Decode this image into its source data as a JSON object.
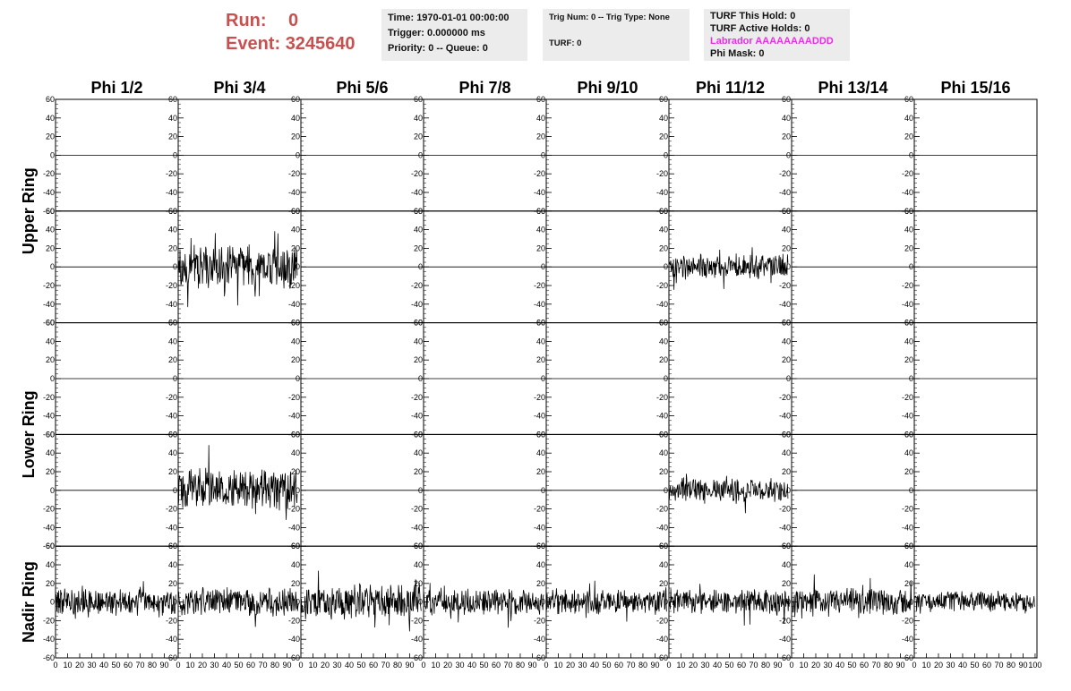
{
  "header": {
    "run_label": "Run:",
    "run_value": "0",
    "event_label": "Event:",
    "event_value": "3245640",
    "time": "Time: 1970-01-01 00:00:00",
    "trigger": "Trigger: 0.000000 ms",
    "priority": "Priority: 0 -- Queue: 0",
    "trig_num": "Trig Num: 0 -- Trig Type: None",
    "turf": "TURF: 0",
    "turf_this_hold": "TURF This Hold: 0",
    "turf_active_holds": "TURF Active Holds: 0",
    "labrador": "Labrador AAAAAAAADDD",
    "phi_mask": "Phi Mask: 0",
    "labrador_color": "#e52fe5",
    "run_color": "#c8504f"
  },
  "chart_data": {
    "type": "line",
    "columns": [
      "Phi 1/2",
      "Phi 3/4",
      "Phi 5/6",
      "Phi 7/8",
      "Phi 9/10",
      "Phi 11/12",
      "Phi 13/14",
      "Phi 15/16"
    ],
    "rows": [
      "Upper Ring",
      "Lower Ring",
      "Nadir Ring"
    ],
    "ylim": [
      -60,
      60
    ],
    "xlim": [
      0,
      100
    ],
    "y_ticks": [
      "60",
      "40",
      "20",
      "0",
      "-20",
      "-40",
      "-60"
    ],
    "x_ticks": [
      "0",
      "10",
      "20",
      "30",
      "40",
      "50",
      "60",
      "70",
      "80",
      "90",
      "100"
    ],
    "panels": [
      {
        "row": 0,
        "col": 0,
        "amplitude": 0
      },
      {
        "row": 0,
        "col": 1,
        "amplitude": 0
      },
      {
        "row": 0,
        "col": 2,
        "amplitude": 0
      },
      {
        "row": 0,
        "col": 3,
        "amplitude": 0
      },
      {
        "row": 0,
        "col": 4,
        "amplitude": 0
      },
      {
        "row": 0,
        "col": 5,
        "amplitude": 0
      },
      {
        "row": 0,
        "col": 6,
        "amplitude": 0
      },
      {
        "row": 0,
        "col": 7,
        "amplitude": 0
      },
      {
        "row": 1,
        "col": 0,
        "amplitude": 0
      },
      {
        "row": 1,
        "col": 1,
        "amplitude": 22
      },
      {
        "row": 1,
        "col": 2,
        "amplitude": 0
      },
      {
        "row": 1,
        "col": 3,
        "amplitude": 0
      },
      {
        "row": 1,
        "col": 4,
        "amplitude": 0
      },
      {
        "row": 1,
        "col": 5,
        "amplitude": 13
      },
      {
        "row": 1,
        "col": 6,
        "amplitude": 0
      },
      {
        "row": 1,
        "col": 7,
        "amplitude": 0
      },
      {
        "row": 2,
        "col": 0,
        "amplitude": 0
      },
      {
        "row": 2,
        "col": 1,
        "amplitude": 0
      },
      {
        "row": 2,
        "col": 2,
        "amplitude": 0
      },
      {
        "row": 2,
        "col": 3,
        "amplitude": 0
      },
      {
        "row": 2,
        "col": 4,
        "amplitude": 0
      },
      {
        "row": 2,
        "col": 5,
        "amplitude": 0
      },
      {
        "row": 2,
        "col": 6,
        "amplitude": 0
      },
      {
        "row": 2,
        "col": 7,
        "amplitude": 0
      },
      {
        "row": 3,
        "col": 0,
        "amplitude": 0
      },
      {
        "row": 3,
        "col": 1,
        "amplitude": 22
      },
      {
        "row": 3,
        "col": 2,
        "amplitude": 0
      },
      {
        "row": 3,
        "col": 3,
        "amplitude": 0
      },
      {
        "row": 3,
        "col": 4,
        "amplitude": 0
      },
      {
        "row": 3,
        "col": 5,
        "amplitude": 12
      },
      {
        "row": 3,
        "col": 6,
        "amplitude": 0
      },
      {
        "row": 3,
        "col": 7,
        "amplitude": 0
      },
      {
        "row": 4,
        "col": 0,
        "amplitude": 13
      },
      {
        "row": 4,
        "col": 1,
        "amplitude": 14
      },
      {
        "row": 4,
        "col": 2,
        "amplitude": 17
      },
      {
        "row": 4,
        "col": 3,
        "amplitude": 13
      },
      {
        "row": 4,
        "col": 4,
        "amplitude": 12
      },
      {
        "row": 4,
        "col": 5,
        "amplitude": 13
      },
      {
        "row": 4,
        "col": 6,
        "amplitude": 14
      },
      {
        "row": 4,
        "col": 7,
        "amplitude": 11
      }
    ]
  }
}
